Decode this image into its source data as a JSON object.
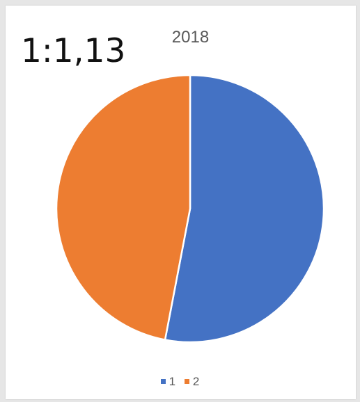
{
  "annotation": "1:1,13",
  "chart_data": {
    "type": "pie",
    "title": "2018",
    "categories": [
      "1",
      "2"
    ],
    "values": [
      53,
      47
    ],
    "colors": [
      "#4472c4",
      "#ed7d31"
    ],
    "start_angle_deg": 0,
    "direction": "clockwise",
    "legend_position": "bottom"
  }
}
